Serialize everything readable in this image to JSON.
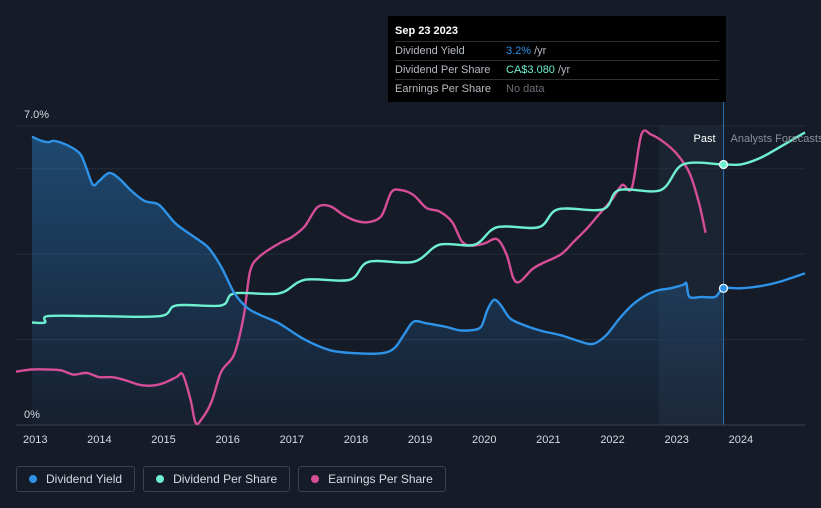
{
  "tooltip": {
    "date": "Sep 23 2023",
    "rows": [
      {
        "label": "Dividend Yield",
        "value": "3.2%",
        "unit": "/yr",
        "color": "#2e93e8"
      },
      {
        "label": "Dividend Per Share",
        "value": "CA$3.080",
        "unit": "/yr",
        "color": "#6ef0d0"
      },
      {
        "label": "Earnings Per Share",
        "value": "No data",
        "unit": "",
        "color": "#6b6f78"
      }
    ]
  },
  "legend": [
    {
      "label": "Dividend Yield",
      "color": "#2e93e8"
    },
    {
      "label": "Dividend Per Share",
      "color": "#6ef0d0"
    },
    {
      "label": "Earnings Per Share",
      "color": "#d64e97"
    }
  ],
  "chart_data": {
    "type": "line",
    "y_top_label": "7.0%",
    "y_bottom_label": "0%",
    "ylim": [
      0,
      7.0
    ],
    "xlim": [
      2012.7,
      2025.0
    ],
    "x_ticks": [
      "2013",
      "2014",
      "2015",
      "2016",
      "2017",
      "2018",
      "2019",
      "2020",
      "2021",
      "2022",
      "2023",
      "2024"
    ],
    "past_label": "Past",
    "forecast_label": "Analysts Forecasts",
    "highlight_x": 2023.73,
    "forecast_start_x": 2022.72,
    "series": [
      {
        "name": "Dividend Yield",
        "color": "#2e93e8",
        "x": [
          2012.95,
          2013.1,
          2013.2,
          2013.3,
          2013.5,
          2013.7,
          2013.8,
          2013.9,
          2014.0,
          2014.15,
          2014.3,
          2014.5,
          2014.7,
          2014.9,
          2015.0,
          2015.2,
          2015.5,
          2015.7,
          2015.9,
          2016.1,
          2016.3,
          2016.5,
          2016.8,
          2017.2,
          2017.6,
          2018.0,
          2018.4,
          2018.6,
          2018.75,
          2018.9,
          2019.1,
          2019.4,
          2019.6,
          2019.8,
          2019.95,
          2020.05,
          2020.15,
          2020.25,
          2020.4,
          2020.6,
          2020.9,
          2021.2,
          2021.5,
          2021.7,
          2021.9,
          2022.1,
          2022.3,
          2022.5,
          2022.7,
          2022.9,
          2023.1,
          2023.15,
          2023.2,
          2023.4,
          2023.6,
          2023.73,
          2024.0,
          2024.3,
          2024.6,
          2025.0
        ],
        "values": [
          6.75,
          6.65,
          6.62,
          6.65,
          6.55,
          6.35,
          6.0,
          5.62,
          5.72,
          5.9,
          5.78,
          5.48,
          5.25,
          5.18,
          5.05,
          4.7,
          4.38,
          4.15,
          3.7,
          3.1,
          2.75,
          2.58,
          2.38,
          2.0,
          1.75,
          1.68,
          1.68,
          1.8,
          2.12,
          2.42,
          2.38,
          2.3,
          2.22,
          2.22,
          2.3,
          2.7,
          2.93,
          2.82,
          2.5,
          2.35,
          2.2,
          2.1,
          1.95,
          1.9,
          2.1,
          2.48,
          2.8,
          3.02,
          3.15,
          3.2,
          3.28,
          3.32,
          3.0,
          3.0,
          3.0,
          3.2,
          3.2,
          3.25,
          3.35,
          3.55
        ]
      },
      {
        "name": "Dividend Per Share",
        "color": "#6ef0d0",
        "x": [
          2012.95,
          2013.15,
          2013.2,
          2013.95,
          2014.95,
          2015.2,
          2015.9,
          2016.1,
          2016.8,
          2017.2,
          2017.9,
          2018.2,
          2018.9,
          2019.3,
          2019.85,
          2020.2,
          2020.85,
          2021.15,
          2021.85,
          2022.1,
          2022.75,
          2023.1,
          2023.73,
          2024.0,
          2024.3,
          2024.6,
          2025.0
        ],
        "values": [
          2.4,
          2.4,
          2.55,
          2.55,
          2.55,
          2.8,
          2.8,
          3.08,
          3.08,
          3.4,
          3.4,
          3.82,
          3.82,
          4.22,
          4.22,
          4.63,
          4.63,
          5.05,
          5.05,
          5.5,
          5.5,
          6.1,
          6.1,
          6.1,
          6.25,
          6.5,
          6.85
        ]
      },
      {
        "name": "Earnings Per Share",
        "color": "#d64e97",
        "x": [
          2012.7,
          2012.95,
          2013.2,
          2013.4,
          2013.6,
          2013.8,
          2014.0,
          2014.2,
          2014.4,
          2014.6,
          2014.8,
          2015.0,
          2015.2,
          2015.3,
          2015.42,
          2015.5,
          2015.6,
          2015.75,
          2015.9,
          2016.1,
          2016.25,
          2016.35,
          2016.5,
          2016.8,
          2017.0,
          2017.2,
          2017.4,
          2017.6,
          2017.8,
          2018.0,
          2018.2,
          2018.4,
          2018.55,
          2018.7,
          2018.9,
          2019.1,
          2019.3,
          2019.5,
          2019.65,
          2019.8,
          2020.0,
          2020.2,
          2020.35,
          2020.45,
          2020.55,
          2020.75,
          2020.9,
          2021.2,
          2021.4,
          2021.6,
          2021.8,
          2022.0,
          2022.15,
          2022.3,
          2022.45,
          2022.6,
          2022.8,
          2023.0,
          2023.2,
          2023.35,
          2023.45
        ],
        "values": [
          1.25,
          1.3,
          1.3,
          1.28,
          1.18,
          1.22,
          1.12,
          1.12,
          1.05,
          0.95,
          0.92,
          0.98,
          1.12,
          1.18,
          0.6,
          0.05,
          0.15,
          0.55,
          1.25,
          1.65,
          2.55,
          3.6,
          3.95,
          4.25,
          4.4,
          4.65,
          5.1,
          5.12,
          4.92,
          4.78,
          4.75,
          4.9,
          5.45,
          5.5,
          5.38,
          5.08,
          5.0,
          4.75,
          4.3,
          4.2,
          4.25,
          4.35,
          3.98,
          3.45,
          3.35,
          3.65,
          3.78,
          4.0,
          4.3,
          4.6,
          4.95,
          5.3,
          5.62,
          5.55,
          6.8,
          6.8,
          6.62,
          6.35,
          5.9,
          5.18,
          4.5
        ]
      }
    ]
  }
}
